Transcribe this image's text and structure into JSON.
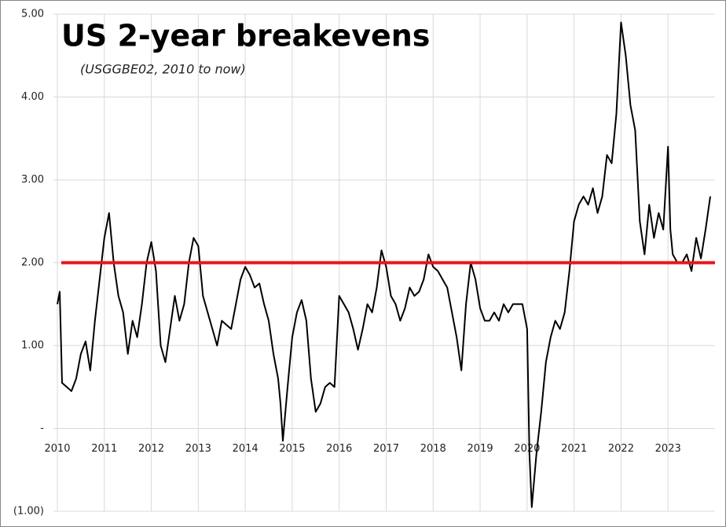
{
  "chart_data": {
    "type": "line",
    "title": "US 2-year breakevens",
    "subtitle": "(USGGBE02, 2010 to now)",
    "x": [
      2010.0,
      2010.05,
      2010.1,
      2010.2,
      2010.3,
      2010.4,
      2010.5,
      2010.6,
      2010.7,
      2010.8,
      2010.9,
      2011.0,
      2011.1,
      2011.2,
      2011.3,
      2011.4,
      2011.5,
      2011.6,
      2011.7,
      2011.8,
      2011.9,
      2012.0,
      2012.1,
      2012.2,
      2012.3,
      2012.4,
      2012.5,
      2012.6,
      2012.7,
      2012.8,
      2012.9,
      2013.0,
      2013.1,
      2013.2,
      2013.3,
      2013.4,
      2013.5,
      2013.6,
      2013.7,
      2013.8,
      2013.9,
      2014.0,
      2014.1,
      2014.2,
      2014.3,
      2014.4,
      2014.5,
      2014.6,
      2014.7,
      2014.75,
      2014.8,
      2014.9,
      2015.0,
      2015.1,
      2015.2,
      2015.3,
      2015.4,
      2015.5,
      2015.6,
      2015.7,
      2015.8,
      2015.9,
      2016.0,
      2016.1,
      2016.2,
      2016.3,
      2016.4,
      2016.5,
      2016.6,
      2016.7,
      2016.8,
      2016.9,
      2017.0,
      2017.1,
      2017.2,
      2017.3,
      2017.4,
      2017.5,
      2017.6,
      2017.7,
      2017.8,
      2017.9,
      2018.0,
      2018.1,
      2018.2,
      2018.3,
      2018.4,
      2018.5,
      2018.6,
      2018.7,
      2018.8,
      2018.9,
      2019.0,
      2019.1,
      2019.2,
      2019.3,
      2019.4,
      2019.5,
      2019.6,
      2019.7,
      2019.8,
      2019.9,
      2020.0,
      2020.05,
      2020.1,
      2020.2,
      2020.3,
      2020.4,
      2020.5,
      2020.6,
      2020.7,
      2020.8,
      2020.9,
      2021.0,
      2021.1,
      2021.2,
      2021.3,
      2021.4,
      2021.5,
      2021.6,
      2021.7,
      2021.8,
      2021.9,
      2022.0,
      2022.1,
      2022.2,
      2022.3,
      2022.4,
      2022.5,
      2022.6,
      2022.7,
      2022.8,
      2022.9,
      2023.0,
      2023.05,
      2023.1,
      2023.2,
      2023.3,
      2023.4,
      2023.5,
      2023.6,
      2023.7,
      2023.8,
      2023.9
    ],
    "series": [
      {
        "name": "USGGBE02",
        "color": "#000000",
        "values": [
          1.5,
          1.65,
          0.55,
          0.5,
          0.45,
          0.6,
          0.9,
          1.05,
          0.7,
          1.3,
          1.8,
          2.3,
          2.6,
          2.0,
          1.6,
          1.4,
          0.9,
          1.3,
          1.1,
          1.5,
          2.0,
          2.25,
          1.9,
          1.0,
          0.8,
          1.2,
          1.6,
          1.3,
          1.5,
          2.0,
          2.3,
          2.2,
          1.6,
          1.4,
          1.2,
          1.0,
          1.3,
          1.25,
          1.2,
          1.5,
          1.8,
          1.95,
          1.85,
          1.7,
          1.75,
          1.5,
          1.3,
          0.9,
          0.6,
          0.3,
          -0.15,
          0.5,
          1.1,
          1.4,
          1.55,
          1.3,
          0.6,
          0.2,
          0.3,
          0.5,
          0.55,
          0.5,
          1.6,
          1.5,
          1.4,
          1.2,
          0.95,
          1.2,
          1.5,
          1.4,
          1.7,
          2.15,
          1.95,
          1.6,
          1.5,
          1.3,
          1.45,
          1.7,
          1.6,
          1.65,
          1.8,
          2.1,
          1.95,
          1.9,
          1.8,
          1.7,
          1.4,
          1.1,
          0.7,
          1.5,
          2.0,
          1.8,
          1.45,
          1.3,
          1.3,
          1.4,
          1.3,
          1.5,
          1.4,
          1.5,
          1.5,
          1.5,
          1.2,
          -0.3,
          -0.95,
          -0.3,
          0.2,
          0.8,
          1.1,
          1.3,
          1.2,
          1.4,
          1.9,
          2.5,
          2.7,
          2.8,
          2.7,
          2.9,
          2.6,
          2.8,
          3.3,
          3.2,
          3.8,
          4.9,
          4.5,
          3.9,
          3.6,
          2.5,
          2.1,
          2.7,
          2.3,
          2.6,
          2.4,
          3.4,
          2.4,
          2.1,
          2.0,
          2.0,
          2.1,
          1.9,
          2.3,
          2.05,
          2.4,
          2.8
        ]
      }
    ],
    "reference_line": {
      "value": 2,
      "color": "#e8141c"
    },
    "xlim": [
      2010,
      2024
    ],
    "xticks": [
      2010,
      2011,
      2012,
      2013,
      2014,
      2015,
      2016,
      2017,
      2018,
      2019,
      2020,
      2021,
      2022,
      2023
    ],
    "ylim": [
      -1,
      5
    ],
    "yticks": [
      {
        "value": -1,
        "label": "(1.00)"
      },
      {
        "value": 0,
        "label": "-"
      },
      {
        "value": 1,
        "label": "1.00"
      },
      {
        "value": 2,
        "label": "2.00"
      },
      {
        "value": 3,
        "label": "3.00"
      },
      {
        "value": 4,
        "label": "4.00"
      },
      {
        "value": 5,
        "label": "5.00"
      }
    ],
    "grid": true
  }
}
